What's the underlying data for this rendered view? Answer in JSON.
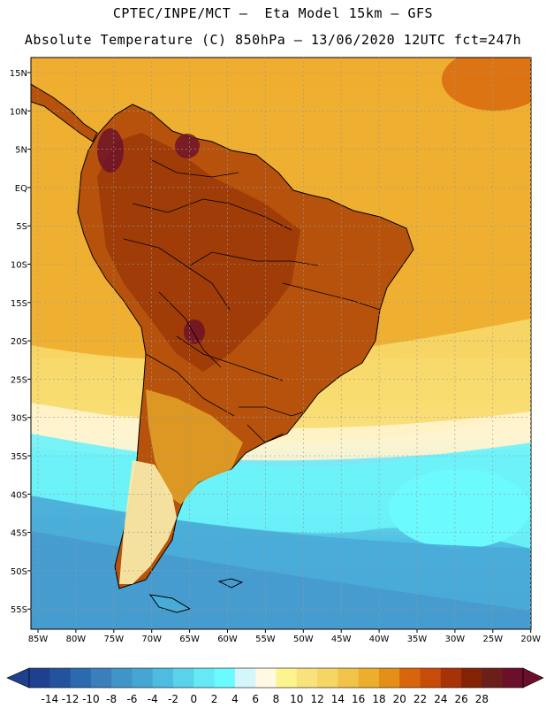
{
  "title_line1": "CPTEC/INPE/MCT –  Eta Model 15km – GFS",
  "title_line2": "Absolute Temperature (C) 850hPa – 13/06/2020 12UTC fct=247h",
  "lat_labels": [
    "15N",
    "10N",
    "5N",
    "EQ",
    "5S",
    "10S",
    "15S",
    "20S",
    "25S",
    "30S",
    "35S",
    "40S",
    "45S",
    "50S",
    "55S"
  ],
  "lon_labels": [
    "85W",
    "80W",
    "75W",
    "70W",
    "65W",
    "60W",
    "55W",
    "50W",
    "45W",
    "40W",
    "35W",
    "30W",
    "25W",
    "20W"
  ],
  "colorbar": {
    "labels": [
      "-14",
      "-12",
      "-10",
      "-8",
      "-6",
      "-4",
      "-2",
      "0",
      "2",
      "4",
      "6",
      "8",
      "10",
      "12",
      "14",
      "16",
      "18",
      "20",
      "22",
      "24",
      "26",
      "28"
    ],
    "colors": [
      "#1f3f8f",
      "#24539e",
      "#2b6aae",
      "#3a7fbb",
      "#3f94c8",
      "#45a6d3",
      "#4ebbe0",
      "#5ad2ea",
      "#66e9f4",
      "#6bfafd",
      "#d2f6fb",
      "#fff9e3",
      "#fdf48f",
      "#f9e27b",
      "#f5d563",
      "#f1c34a",
      "#ecae2d",
      "#e48f17",
      "#d8650c",
      "#c74c09",
      "#a83208",
      "#822305",
      "#6b1f1a",
      "#6b0f2a"
    ]
  },
  "legend_colors": {
    "ocean_warm": "#f0b336",
    "continent_hot": "#b8510a",
    "cold_sea": "#45a6d3"
  }
}
